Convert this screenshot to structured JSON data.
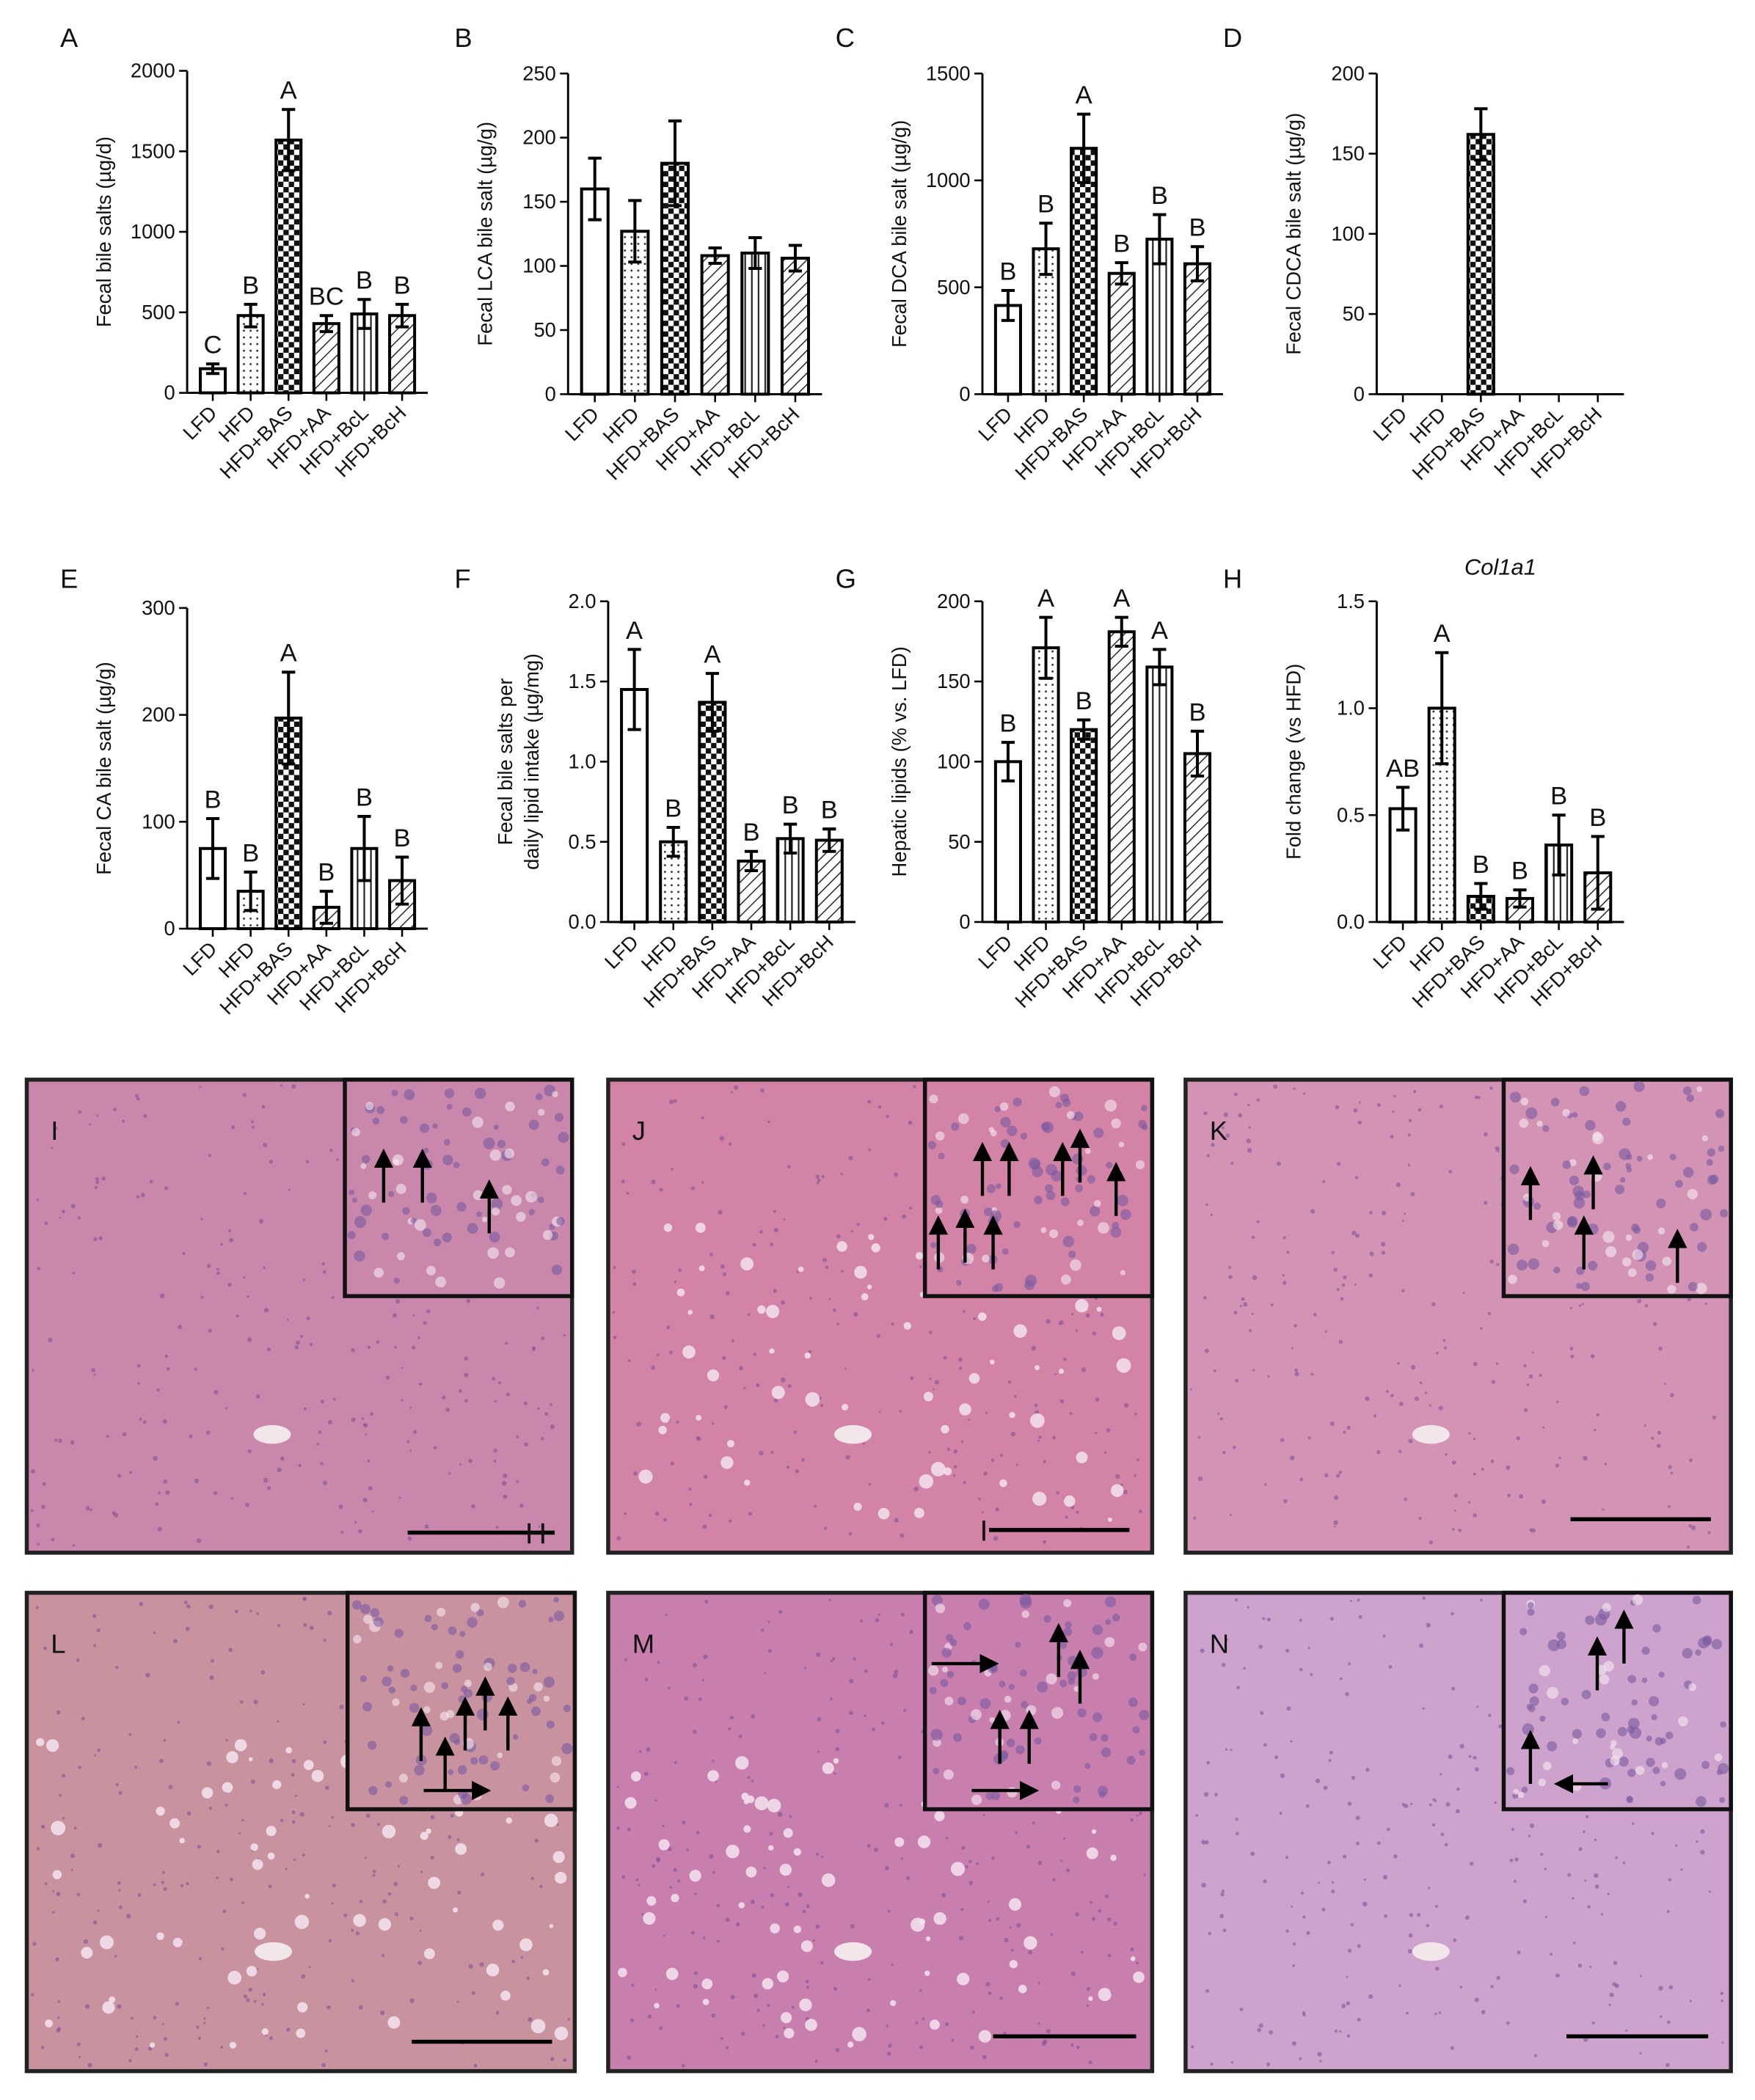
{
  "chart_data": [
    {
      "type": "bar",
      "panel": "A",
      "ylabel": "Fecal bile salts (µg/d)",
      "categories": [
        "LFD",
        "HFD",
        "HFD+BAS",
        "HFD+AA",
        "HFD+BcL",
        "HFD+BcH"
      ],
      "values": [
        150,
        480,
        1570,
        430,
        490,
        480
      ],
      "errors": [
        30,
        70,
        190,
        50,
        90,
        70
      ],
      "annotations": [
        "C",
        "B",
        "A",
        "BC",
        "B",
        "B"
      ],
      "patterns": [
        "open",
        "dots",
        "checker",
        "diagonal",
        "vertical",
        "diagonal"
      ],
      "ylim": [
        0,
        2000
      ],
      "yticks": [
        0,
        500,
        1000,
        1500,
        2000
      ]
    },
    {
      "type": "bar",
      "panel": "B",
      "ylabel": "Fecal LCA bile salt (µg/g)",
      "categories": [
        "LFD",
        "HFD",
        "HFD+BAS",
        "HFD+AA",
        "HFD+BcL",
        "HFD+BcH"
      ],
      "values": [
        160,
        127,
        180,
        108,
        110,
        106
      ],
      "errors": [
        24,
        24,
        33,
        6,
        12,
        10
      ],
      "patterns": [
        "open",
        "dots",
        "checker",
        "diagonal",
        "vertical",
        "diagonal"
      ],
      "ylim": [
        0,
        250
      ],
      "yticks": [
        0,
        50,
        100,
        150,
        200,
        250
      ]
    },
    {
      "type": "bar",
      "panel": "C",
      "ylabel": "Fecal DCA bile salt (µg/g)",
      "categories": [
        "LFD",
        "HFD",
        "HFD+BAS",
        "HFD+AA",
        "HFD+BcL",
        "HFD+BcH"
      ],
      "values": [
        415,
        680,
        1150,
        565,
        725,
        610
      ],
      "errors": [
        70,
        120,
        160,
        50,
        115,
        80
      ],
      "annotations": [
        "B",
        "B",
        "A",
        "B",
        "B",
        "B"
      ],
      "patterns": [
        "open",
        "dots",
        "checker",
        "diagonal",
        "vertical",
        "diagonal"
      ],
      "ylim": [
        0,
        1500
      ],
      "yticks": [
        0,
        500,
        1000,
        1500
      ]
    },
    {
      "type": "bar",
      "panel": "D",
      "ylabel": "Fecal CDCA bile salt (µg/g)",
      "categories": [
        "LFD",
        "HFD",
        "HFD+BAS",
        "HFD+AA",
        "HFD+BcL",
        "HFD+BcH"
      ],
      "values": [
        0,
        0,
        162,
        0,
        0,
        0
      ],
      "errors": [
        0,
        0,
        16,
        0,
        0,
        0
      ],
      "patterns": [
        "open",
        "dots",
        "checker",
        "diagonal",
        "vertical",
        "diagonal"
      ],
      "ylim": [
        0,
        200
      ],
      "yticks": [
        0,
        50,
        100,
        150,
        200
      ]
    },
    {
      "type": "bar",
      "panel": "E",
      "ylabel": "Fecal CA bile salt (µg/g)",
      "categories": [
        "LFD",
        "HFD",
        "HFD+BAS",
        "HFD+AA",
        "HFD+BcL",
        "HFD+BcH"
      ],
      "values": [
        75,
        35,
        197,
        20,
        75,
        45
      ],
      "errors": [
        28,
        18,
        43,
        15,
        30,
        22
      ],
      "annotations": [
        "B",
        "B",
        "A",
        "B",
        "B",
        "B"
      ],
      "patterns": [
        "open",
        "dots",
        "checker",
        "diagonal",
        "vertical",
        "diagonal"
      ],
      "ylim": [
        0,
        300
      ],
      "yticks": [
        0,
        100,
        200,
        300
      ]
    },
    {
      "type": "bar",
      "panel": "F",
      "ylabel": [
        "Fecal bile salts per",
        "daily lipid intake (µg/mg)"
      ],
      "categories": [
        "LFD",
        "HFD",
        "HFD+BAS",
        "HFD+AA",
        "HFD+BcL",
        "HFD+BcH"
      ],
      "values": [
        1.45,
        0.5,
        1.37,
        0.38,
        0.52,
        0.51
      ],
      "errors": [
        0.25,
        0.09,
        0.18,
        0.06,
        0.09,
        0.07
      ],
      "annotations": [
        "A",
        "B",
        "A",
        "B",
        "B",
        "B"
      ],
      "patterns": [
        "open",
        "dots",
        "checker",
        "diagonal",
        "vertical",
        "diagonal"
      ],
      "ylim": [
        0,
        2
      ],
      "yticks": [
        {
          "value": 0,
          "label": "0.0"
        },
        0.5,
        {
          "value": 1,
          "label": "1.0"
        },
        1.5,
        {
          "value": 2,
          "label": "2.0"
        }
      ]
    },
    {
      "type": "bar",
      "panel": "G",
      "ylabel": "Hepatic lipids (% vs. LFD)",
      "categories": [
        "LFD",
        "HFD",
        "HFD+BAS",
        "HFD+AA",
        "HFD+BcL",
        "HFD+BcH"
      ],
      "values": [
        100,
        171,
        120,
        181,
        159,
        105
      ],
      "errors": [
        12,
        19,
        6,
        9,
        11,
        14
      ],
      "annotations": [
        "B",
        "A",
        "B",
        "A",
        "A",
        "B"
      ],
      "patterns": [
        "open",
        "dots",
        "checker",
        "diagonal",
        "vertical",
        "diagonal"
      ],
      "ylim": [
        0,
        200
      ],
      "yticks": [
        0,
        50,
        100,
        150,
        200
      ]
    },
    {
      "type": "bar",
      "panel": "H",
      "title": "Col1a1",
      "ylabel": "Fold change (vs HFD)",
      "categories": [
        "LFD",
        "HFD",
        "HFD+BAS",
        "HFD+AA",
        "HFD+BcL",
        "HFD+BcH"
      ],
      "values": [
        0.53,
        1,
        0.12,
        0.11,
        0.36,
        0.23
      ],
      "errors": [
        0.1,
        0.26,
        0.06,
        0.04,
        0.14,
        0.17
      ],
      "annotations": [
        "AB",
        "A",
        "B",
        "B",
        "B",
        "B"
      ],
      "patterns": [
        "open",
        "dots",
        "checker",
        "diagonal",
        "vertical",
        "diagonal"
      ],
      "ylim": [
        0,
        1.5
      ],
      "yticks": [
        {
          "value": 0,
          "label": "0.0"
        },
        0.5,
        {
          "value": 1,
          "label": "1.0"
        },
        1.5
      ]
    }
  ],
  "micrographs": [
    {
      "label": "I",
      "scale_text": "H"
    },
    {
      "label": "J",
      "scale_text": "I"
    },
    {
      "label": "K"
    },
    {
      "label": "L"
    },
    {
      "label": "M"
    },
    {
      "label": "N"
    }
  ]
}
